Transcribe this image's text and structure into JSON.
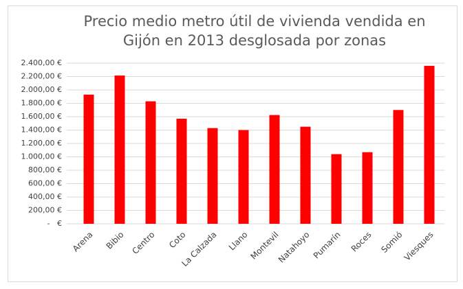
{
  "chart_data": {
    "type": "bar",
    "title": [
      "Precio medio metro útil de vivienda vendida en",
      "Gijón en 2013 desglosada por zonas"
    ],
    "categories": [
      "Arena",
      "Bibio",
      "Centro",
      "Coto",
      "La Calzada",
      "Llano",
      "Montevil",
      "Natahoyo",
      "Pumarín",
      "Roces",
      "Somió",
      "Viesques"
    ],
    "values": [
      1930,
      2215,
      1830,
      1570,
      1430,
      1400,
      1625,
      1450,
      1040,
      1070,
      1700,
      2360
    ],
    "color": "#ff0000",
    "ylim": [
      0,
      2400
    ],
    "yticks": [
      {
        "value": 0,
        "label": "  -   €"
      },
      {
        "value": 200,
        "label": "200,00 €"
      },
      {
        "value": 400,
        "label": "400,00 €"
      },
      {
        "value": 600,
        "label": "600,00 €"
      },
      {
        "value": 800,
        "label": "800,00 €"
      },
      {
        "value": 1000,
        "label": "1.000,00 €"
      },
      {
        "value": 1200,
        "label": "1.200,00 €"
      },
      {
        "value": 1400,
        "label": "1.400,00 €"
      },
      {
        "value": 1600,
        "label": "1.600,00 €"
      },
      {
        "value": 1800,
        "label": "1.800,00 €"
      },
      {
        "value": 2000,
        "label": "2.000,00 €"
      },
      {
        "value": 2200,
        "label": "2.200,00 €"
      },
      {
        "value": 2400,
        "label": "2.400,00 €"
      }
    ],
    "grid": true
  }
}
